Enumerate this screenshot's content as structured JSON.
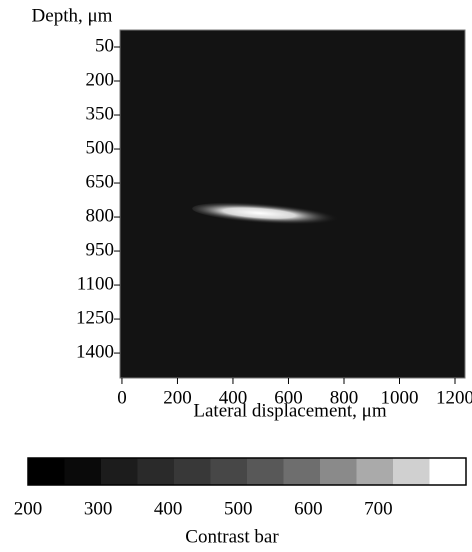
{
  "chart_data": {
    "type": "image",
    "y_label": "Depth, μm",
    "x_label": "Lateral displacement, μm",
    "ylim": [
      -25,
      1510
    ],
    "y_inverted": true,
    "yticks": [
      50,
      200,
      350,
      500,
      650,
      800,
      950,
      1100,
      1250,
      1400
    ],
    "xlim": [
      -7,
      1236
    ],
    "xticks": [
      0,
      200,
      400,
      600,
      800,
      1000,
      1200
    ],
    "colorbar": {
      "label": "Contrast bar",
      "lim": [
        200,
        825
      ],
      "ticks": [
        200,
        300,
        400,
        500,
        600,
        700
      ],
      "colors": [
        "#000000",
        "#0a0a0a",
        "#1c1c1c",
        "#2a2a2a",
        "#383838",
        "#474747",
        "#585858",
        "#6e6e6e",
        "#8a8a8a",
        "#aaaaaa",
        "#d0d0d0",
        "#ffffff"
      ]
    }
  }
}
